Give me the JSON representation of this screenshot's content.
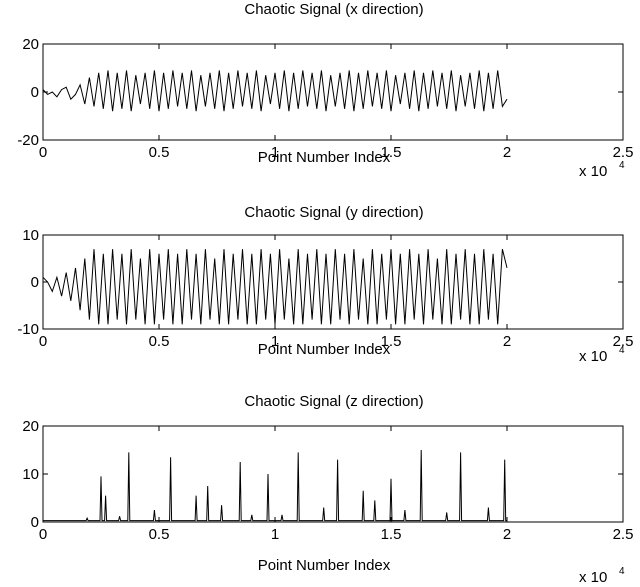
{
  "chart_data": [
    {
      "type": "line",
      "title": "Chaotic Signal (x direction)",
      "xlabel": "Point Number Index",
      "x_multiplier": "x 10",
      "x_multiplier_exponent": "4",
      "xlim": [
        0,
        2.5
      ],
      "ylim": [
        -20,
        20
      ],
      "xticks": [
        0,
        0.5,
        1,
        1.5,
        2,
        2.5
      ],
      "xtick_labels": [
        "0",
        "0.5",
        "1",
        "1.5",
        "2",
        "2.5"
      ],
      "yticks": [
        -20,
        0,
        20
      ],
      "ytick_labels": [
        "-20",
        "0",
        "20"
      ],
      "grid": false,
      "series": [
        {
          "values_note": "oscillating signal, x in units of 10^4 points",
          "x": [
            0,
            0.02,
            0.04,
            0.06,
            0.08,
            0.1,
            0.12,
            0.14,
            0.16,
            0.18,
            0.2,
            0.22,
            0.24,
            0.26,
            0.28,
            0.3,
            0.32,
            0.34,
            0.36,
            0.38,
            0.4,
            0.42,
            0.44,
            0.46,
            0.48,
            0.5,
            0.52,
            0.54,
            0.56,
            0.58,
            0.6,
            0.62,
            0.64,
            0.66,
            0.68,
            0.7,
            0.72,
            0.74,
            0.76,
            0.78,
            0.8,
            0.82,
            0.84,
            0.86,
            0.88,
            0.9,
            0.92,
            0.94,
            0.96,
            0.98,
            1.0,
            1.02,
            1.04,
            1.06,
            1.08,
            1.1,
            1.12,
            1.14,
            1.16,
            1.18,
            1.2,
            1.22,
            1.24,
            1.26,
            1.28,
            1.3,
            1.32,
            1.34,
            1.36,
            1.38,
            1.4,
            1.42,
            1.44,
            1.46,
            1.48,
            1.5,
            1.52,
            1.54,
            1.56,
            1.58,
            1.6,
            1.62,
            1.64,
            1.66,
            1.68,
            1.7,
            1.72,
            1.74,
            1.76,
            1.78,
            1.8,
            1.82,
            1.84,
            1.86,
            1.88,
            1.9,
            1.92,
            1.94,
            1.96,
            1.98,
            2.0
          ],
          "y": [
            1,
            -1,
            0,
            -2,
            1,
            2,
            -3,
            -1,
            3,
            -5,
            6,
            -6,
            8,
            -7,
            9,
            -8,
            8,
            -7,
            9,
            -8,
            7,
            -5,
            8,
            -7,
            9,
            -8,
            8,
            -7,
            9,
            -6,
            8,
            -7,
            9,
            -8,
            7,
            -6,
            8,
            -7,
            9,
            -8,
            8,
            -7,
            9,
            -6,
            8,
            -7,
            9,
            -8,
            7,
            -5,
            8,
            -7,
            9,
            -8,
            8,
            -7,
            9,
            -6,
            8,
            -7,
            9,
            -8,
            7,
            -6,
            8,
            -7,
            9,
            -8,
            8,
            -7,
            9,
            -6,
            8,
            -7,
            9,
            -8,
            7,
            -5,
            8,
            -7,
            9,
            -8,
            8,
            -7,
            9,
            -6,
            8,
            -7,
            9,
            -8,
            7,
            -6,
            8,
            -7,
            9,
            -8,
            8,
            -7,
            9,
            -6,
            -3
          ]
        }
      ]
    },
    {
      "type": "line",
      "title": "Chaotic Signal (y direction)",
      "xlabel": "Point Number Index",
      "x_multiplier": "x 10",
      "x_multiplier_exponent": "4",
      "xlim": [
        0,
        2.5
      ],
      "ylim": [
        -10,
        10
      ],
      "xticks": [
        0,
        0.5,
        1,
        1.5,
        2,
        2.5
      ],
      "xtick_labels": [
        "0",
        "0.5",
        "1",
        "1.5",
        "2",
        "2.5"
      ],
      "yticks": [
        -10,
        0,
        10
      ],
      "ytick_labels": [
        "-10",
        "0",
        "10"
      ],
      "grid": false,
      "series": [
        {
          "x": [
            0,
            0.02,
            0.04,
            0.06,
            0.08,
            0.1,
            0.12,
            0.14,
            0.16,
            0.18,
            0.2,
            0.22,
            0.24,
            0.26,
            0.28,
            0.3,
            0.32,
            0.34,
            0.36,
            0.38,
            0.4,
            0.42,
            0.44,
            0.46,
            0.48,
            0.5,
            0.52,
            0.54,
            0.56,
            0.58,
            0.6,
            0.62,
            0.64,
            0.66,
            0.68,
            0.7,
            0.72,
            0.74,
            0.76,
            0.78,
            0.8,
            0.82,
            0.84,
            0.86,
            0.88,
            0.9,
            0.92,
            0.94,
            0.96,
            0.98,
            1.0,
            1.02,
            1.04,
            1.06,
            1.08,
            1.1,
            1.12,
            1.14,
            1.16,
            1.18,
            1.2,
            1.22,
            1.24,
            1.26,
            1.28,
            1.3,
            1.32,
            1.34,
            1.36,
            1.38,
            1.4,
            1.42,
            1.44,
            1.46,
            1.48,
            1.5,
            1.52,
            1.54,
            1.56,
            1.58,
            1.6,
            1.62,
            1.64,
            1.66,
            1.68,
            1.7,
            1.72,
            1.74,
            1.76,
            1.78,
            1.8,
            1.82,
            1.84,
            1.86,
            1.88,
            1.9,
            1.92,
            1.94,
            1.96,
            1.98,
            2.0
          ],
          "y": [
            1,
            0,
            -2,
            1,
            -3,
            2,
            -4,
            3,
            -6,
            5,
            -8,
            7,
            -9,
            6,
            -9,
            7,
            -8,
            6,
            -9,
            7,
            -8,
            5,
            -9,
            7,
            -9,
            6,
            -8,
            7,
            -9,
            6,
            -9,
            7,
            -8,
            6,
            -9,
            7,
            -8,
            5,
            -9,
            7,
            -9,
            6,
            -8,
            7,
            -9,
            6,
            -9,
            7,
            -8,
            6,
            -9,
            7,
            -8,
            5,
            -9,
            7,
            -9,
            6,
            -8,
            7,
            -9,
            6,
            -9,
            7,
            -8,
            6,
            -9,
            7,
            -8,
            5,
            -9,
            7,
            -9,
            6,
            -8,
            7,
            -9,
            6,
            -9,
            7,
            -8,
            6,
            -9,
            7,
            -8,
            5,
            -9,
            7,
            -9,
            6,
            -8,
            7,
            -9,
            6,
            -9,
            7,
            -8,
            6,
            -9,
            7,
            3
          ]
        }
      ]
    },
    {
      "type": "line",
      "title": "Chaotic Signal (z direction)",
      "xlabel": "Point Number Index",
      "x_multiplier": "x 10",
      "x_multiplier_exponent": "4",
      "xlim": [
        0,
        2.5
      ],
      "ylim": [
        0,
        20
      ],
      "xticks": [
        0,
        0.5,
        1,
        1.5,
        2,
        2.5
      ],
      "xtick_labels": [
        "0",
        "0.5",
        "1",
        "1.5",
        "2",
        "2.5"
      ],
      "yticks": [
        0,
        10,
        20
      ],
      "ytick_labels": [
        "0",
        "10",
        "20"
      ],
      "grid": false,
      "series": [
        {
          "baseline": 0.3,
          "spikes": [
            {
              "x": 0.19,
              "y": 0.8
            },
            {
              "x": 0.25,
              "y": 9.5
            },
            {
              "x": 0.27,
              "y": 5.5
            },
            {
              "x": 0.33,
              "y": 1.2
            },
            {
              "x": 0.37,
              "y": 14.5
            },
            {
              "x": 0.48,
              "y": 2.5
            },
            {
              "x": 0.55,
              "y": 13.5
            },
            {
              "x": 0.66,
              "y": 5.5
            },
            {
              "x": 0.71,
              "y": 7.5
            },
            {
              "x": 0.77,
              "y": 3.5
            },
            {
              "x": 0.85,
              "y": 12.5
            },
            {
              "x": 0.9,
              "y": 1.5
            },
            {
              "x": 0.97,
              "y": 10.0
            },
            {
              "x": 1.03,
              "y": 1.5
            },
            {
              "x": 1.1,
              "y": 14.5
            },
            {
              "x": 1.21,
              "y": 3.0
            },
            {
              "x": 1.27,
              "y": 13.0
            },
            {
              "x": 1.38,
              "y": 6.5
            },
            {
              "x": 1.43,
              "y": 4.5
            },
            {
              "x": 1.5,
              "y": 9.0
            },
            {
              "x": 1.56,
              "y": 2.5
            },
            {
              "x": 1.63,
              "y": 15.0
            },
            {
              "x": 1.74,
              "y": 2.0
            },
            {
              "x": 1.8,
              "y": 14.5
            },
            {
              "x": 1.92,
              "y": 3.0
            },
            {
              "x": 1.99,
              "y": 13.0
            }
          ]
        }
      ]
    }
  ]
}
